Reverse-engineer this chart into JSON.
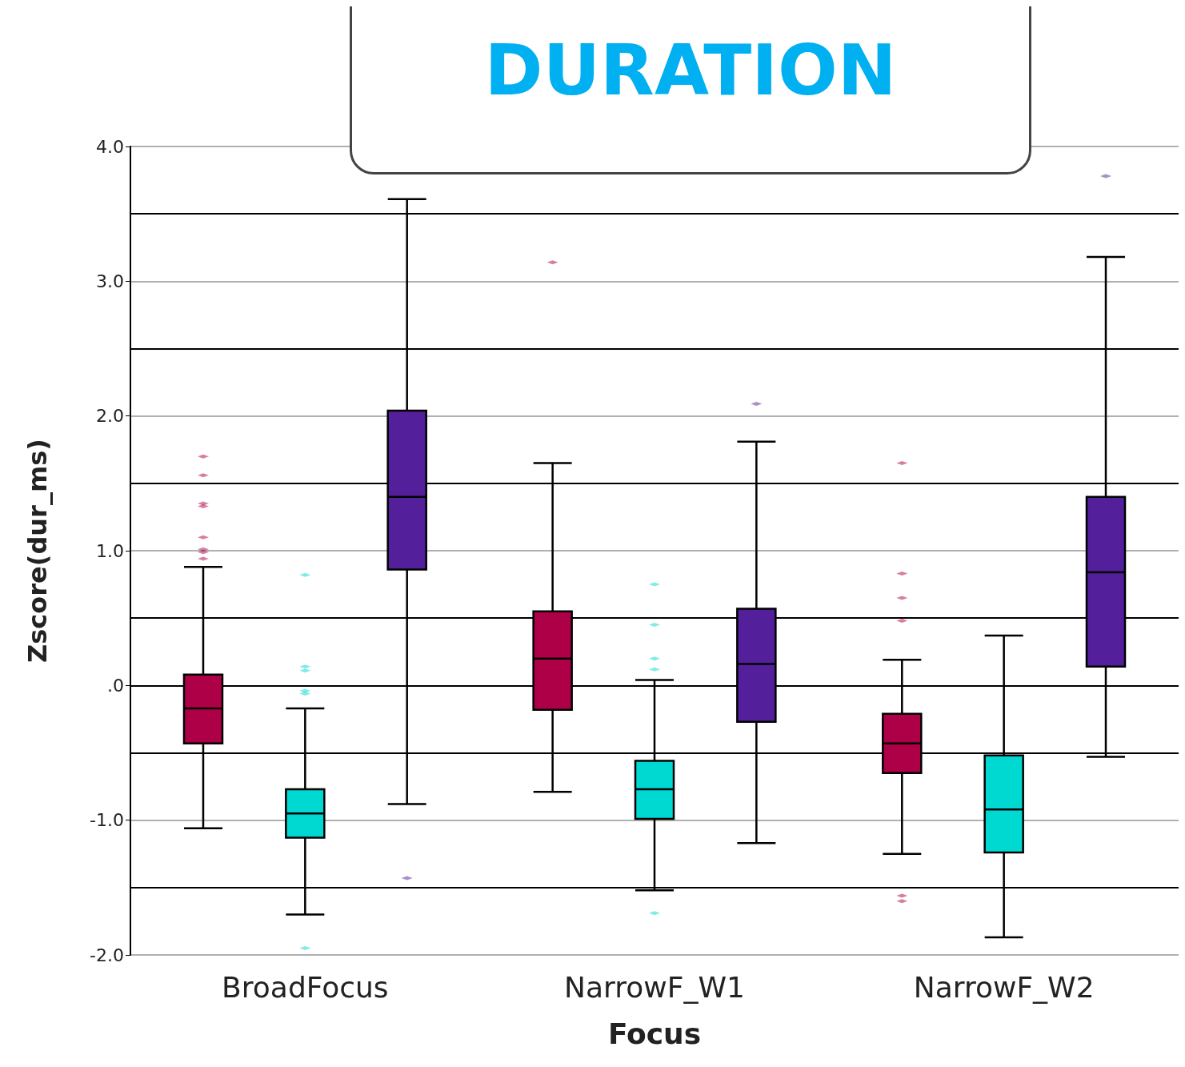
{
  "chart_data": {
    "type": "box",
    "title": "DURATION",
    "xlabel": "Focus",
    "ylabel": "Zscore(dur_ms)",
    "categories": [
      "BroadFocus",
      "NarrowF_W1",
      "NarrowF_W2"
    ],
    "ylim": [
      -2,
      4
    ],
    "yticks": [
      {
        "value": -2,
        "label": "-2.0"
      },
      {
        "value": -1,
        "label": "-1.0"
      },
      {
        "value": 0,
        "label": ".0"
      },
      {
        "value": 1,
        "label": "1.0"
      },
      {
        "value": 2,
        "label": "2.0"
      },
      {
        "value": 3,
        "label": "3.0"
      },
      {
        "value": 4,
        "label": "4.0"
      }
    ],
    "grid": "y",
    "ref_lines": [
      {
        "axis": "y",
        "value": -1.5,
        "color": "#000000"
      },
      {
        "axis": "y",
        "value": -0.5,
        "color": "#000000"
      },
      {
        "axis": "y",
        "value": 0.5,
        "color": "#000000"
      },
      {
        "axis": "y",
        "value": 1.5,
        "color": "#000000"
      },
      {
        "axis": "y",
        "value": 2.5,
        "color": "#000000"
      },
      {
        "axis": "y",
        "value": 3.5,
        "color": "#000000"
      }
    ],
    "series": [
      {
        "color": "#ad0047",
        "boxes": [
          {
            "low": -1.06,
            "q1": -0.43,
            "median": -0.17,
            "q3": 0.08,
            "high": 0.88,
            "outliers": [
              1.7,
              1.56,
              1.35,
              1.33,
              1.1,
              1.01,
              0.99,
              0.94
            ]
          },
          {
            "low": -0.79,
            "q1": -0.18,
            "median": 0.2,
            "q3": 0.55,
            "high": 1.65,
            "outliers": [
              3.14
            ]
          },
          {
            "low": -1.25,
            "q1": -0.65,
            "median": -0.43,
            "q3": -0.21,
            "high": 0.19,
            "outliers": [
              1.65,
              0.83,
              0.65,
              0.48,
              -1.56,
              -1.6
            ]
          }
        ]
      },
      {
        "color": "#00d9d2",
        "boxes": [
          {
            "low": -1.7,
            "q1": -1.13,
            "median": -0.95,
            "q3": -0.77,
            "high": -0.17,
            "outliers": [
              0.82,
              0.14,
              0.11,
              -0.04,
              -0.06,
              -1.95
            ]
          },
          {
            "low": -1.52,
            "q1": -0.99,
            "median": -0.77,
            "q3": -0.56,
            "high": 0.04,
            "outliers": [
              0.75,
              0.45,
              0.2,
              0.12,
              -1.69
            ]
          },
          {
            "low": -1.87,
            "q1": -1.24,
            "median": -0.92,
            "q3": -0.52,
            "high": 0.37
          }
        ]
      },
      {
        "color": "#541f9a",
        "boxes": [
          {
            "low": -0.88,
            "q1": 0.86,
            "median": 1.4,
            "q3": 2.04,
            "high": 3.61,
            "outliers": [
              -1.43
            ]
          },
          {
            "low": -1.17,
            "q1": -0.27,
            "median": 0.16,
            "q3": 0.57,
            "high": 1.81,
            "outliers": [
              2.09
            ]
          },
          {
            "low": -0.53,
            "q1": 0.14,
            "median": 0.84,
            "q3": 1.4,
            "high": 3.18,
            "outliers": [
              3.78
            ]
          }
        ]
      }
    ]
  }
}
